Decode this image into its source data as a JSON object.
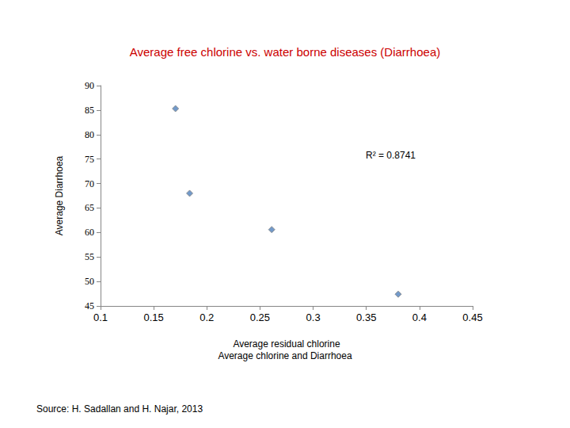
{
  "chart_data": {
    "type": "scatter",
    "title": "Average free chlorine vs. water borne diseases (Diarrhoea)",
    "xlabel": "Average residual chlorine",
    "caption": "Average chlorine and Diarrhoea",
    "ylabel": "Average Diarrhoea",
    "annotations": [
      "R² = 0.8741"
    ],
    "source": "Source: H. Sadallan and H. Najar, 2013",
    "x": [
      0.1705,
      0.1838,
      0.261,
      0.38
    ],
    "values": [
      85.3,
      68.0,
      60.6,
      47.4
    ],
    "color": "#4f81bd",
    "marker": "diamond",
    "xlim": [
      0.1,
      0.45
    ],
    "xticks": [
      0.1,
      0.15,
      0.2,
      0.25,
      0.3,
      0.35,
      0.4,
      0.45
    ],
    "ylim": [
      45,
      90
    ],
    "yticks": [
      45,
      50,
      55,
      60,
      65,
      70,
      75,
      80,
      85,
      90
    ],
    "grid": false
  }
}
